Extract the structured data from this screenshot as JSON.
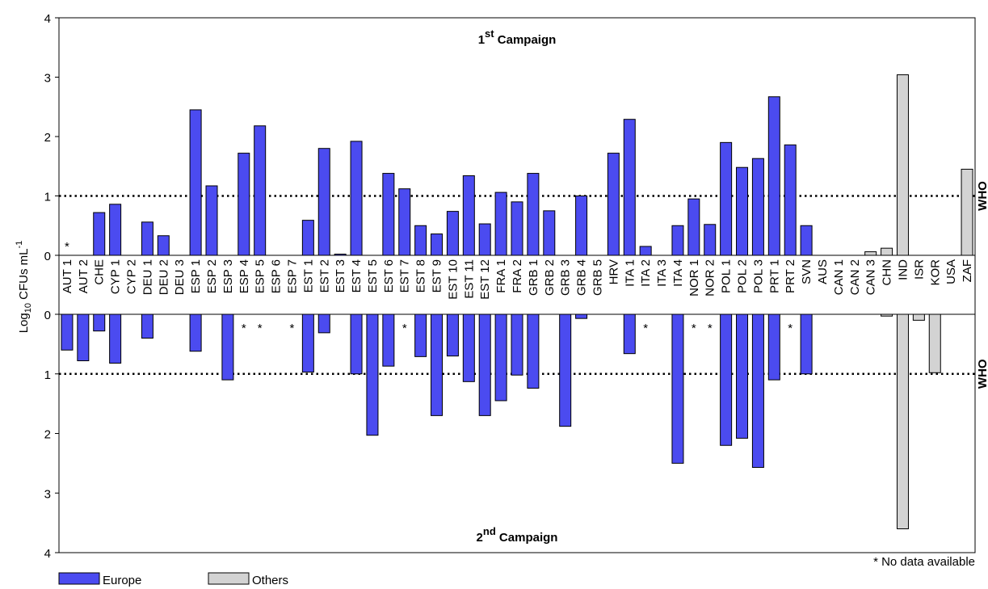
{
  "chart_data": {
    "type": "bar",
    "y_label": "Log10 CFUs mL-1",
    "categories": [
      "AUT 1",
      "AUT 2",
      "CHE",
      "CYP 1",
      "CYP 2",
      "DEU 1",
      "DEU 2",
      "DEU 3",
      "ESP 1",
      "ESP 2",
      "ESP 3",
      "ESP 4",
      "ESP 5",
      "ESP 6",
      "ESP 7",
      "EST 1",
      "EST 2",
      "EST 3",
      "EST 4",
      "EST 5",
      "EST 6",
      "EST 7",
      "EST 8",
      "EST 9",
      "EST 10",
      "EST 11",
      "EST 12",
      "FRA 1",
      "FRA 2",
      "GRB 1",
      "GRB 2",
      "GRB 3",
      "GRB 4",
      "GRB 5",
      "HRV",
      "ITA 1",
      "ITA 2",
      "ITA 3",
      "ITA 4",
      "NOR 1",
      "NOR 2",
      "POL 1",
      "POL 2",
      "POL 3",
      "PRT 1",
      "PRT 2",
      "SVN",
      "AUS",
      "CAN 1",
      "CAN 2",
      "CAN 3",
      "CHN",
      "IND",
      "ISR",
      "KOR",
      "USA",
      "ZAF"
    ],
    "panels": [
      {
        "title": "1st Campaign",
        "ylim": [
          0,
          4
        ],
        "yticks": [
          0,
          1,
          2,
          3,
          4
        ],
        "inverted": false,
        "no_data": [
          "AUT 1"
        ]
      },
      {
        "title": "2nd Campaign",
        "ylim": [
          0,
          4
        ],
        "yticks": [
          0,
          1,
          2,
          3,
          4
        ],
        "inverted": true,
        "no_data": [
          "ESP 4",
          "ESP 5",
          "ESP 7",
          "EST 7",
          "ITA 2",
          "NOR 1",
          "NOR 2",
          "PRT 2"
        ]
      }
    ],
    "reference": {
      "value": 1,
      "label": "WHO"
    },
    "missing_marker": "*",
    "footnote": "* No data available",
    "legend": "bottom-left",
    "series": [
      {
        "name": "Europe",
        "color": "#4b4bf0",
        "values": [
          [
            null,
            0,
            0.72,
            0.86,
            0,
            0.56,
            0.33,
            0,
            2.45,
            1.17,
            0,
            1.72,
            2.18,
            0,
            0,
            0.59,
            1.8,
            0.02,
            1.92,
            0,
            1.38,
            1.12,
            0.5,
            0.36,
            0.74,
            1.34,
            0.53,
            1.06,
            0.9,
            1.38,
            0.75,
            0,
            1.0,
            0,
            1.72,
            2.29,
            0.15,
            0,
            0.5,
            0.95,
            0.52,
            1.9,
            1.48,
            1.63,
            2.67,
            1.86,
            0.5,
            null,
            null,
            null,
            null,
            null,
            null,
            null,
            null,
            null,
            null
          ],
          [
            0.6,
            0.78,
            0.28,
            0.82,
            0,
            0.4,
            0,
            0,
            0.62,
            0,
            1.1,
            null,
            null,
            0,
            null,
            0.97,
            0.31,
            0,
            1.0,
            2.03,
            0.87,
            null,
            0.71,
            1.7,
            0.7,
            1.13,
            1.7,
            1.45,
            1.02,
            1.24,
            0,
            1.88,
            0.07,
            0,
            0,
            0.66,
            null,
            0,
            2.5,
            null,
            null,
            2.2,
            2.08,
            2.57,
            1.1,
            null,
            1.0,
            null,
            null,
            null,
            null,
            null,
            null,
            null,
            null,
            null,
            null
          ]
        ]
      },
      {
        "name": "Others",
        "color": "#d3d3d3",
        "values": [
          [
            null,
            null,
            null,
            null,
            null,
            null,
            null,
            null,
            null,
            null,
            null,
            null,
            null,
            null,
            null,
            null,
            null,
            null,
            null,
            null,
            null,
            null,
            null,
            null,
            null,
            null,
            null,
            null,
            null,
            null,
            null,
            null,
            null,
            null,
            null,
            null,
            null,
            null,
            null,
            null,
            null,
            null,
            null,
            null,
            null,
            null,
            null,
            0,
            0,
            0,
            0.06,
            0.12,
            3.04,
            0,
            0,
            0,
            1.45
          ],
          [
            null,
            null,
            null,
            null,
            null,
            null,
            null,
            null,
            null,
            null,
            null,
            null,
            null,
            null,
            null,
            null,
            null,
            null,
            null,
            null,
            null,
            null,
            null,
            null,
            null,
            null,
            null,
            null,
            null,
            null,
            null,
            null,
            null,
            null,
            null,
            null,
            null,
            null,
            null,
            null,
            null,
            null,
            null,
            null,
            null,
            null,
            null,
            0,
            0,
            0,
            0,
            0.03,
            3.6,
            0.1,
            0.98,
            0,
            0
          ]
        ]
      }
    ]
  }
}
